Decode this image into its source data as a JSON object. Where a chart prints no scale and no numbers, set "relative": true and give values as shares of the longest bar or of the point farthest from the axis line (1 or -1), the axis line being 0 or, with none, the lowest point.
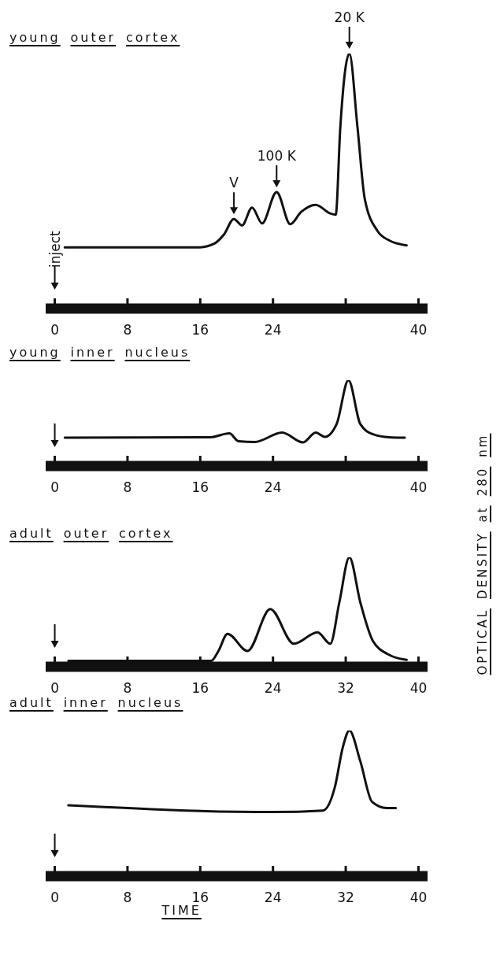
{
  "chart_data": [
    {
      "type": "line",
      "title": "young outer cortex",
      "relative": true,
      "color": "#111111",
      "xlim": [
        -1,
        41
      ],
      "xticks": [
        0,
        8,
        16,
        24,
        {
          "value": 32,
          "label": null
        },
        40
      ],
      "x": [
        1.1,
        15.8,
        17.6,
        18.6,
        19.7,
        20.6,
        21.7,
        22.8,
        24.4,
        25.9,
        27.1,
        28.7,
        30.3,
        30.9,
        31.4,
        32.4,
        33.3,
        34.1,
        35.5,
        36.8,
        38.7
      ],
      "values": [
        0.24,
        0.24,
        0.256,
        0.29,
        0.351,
        0.326,
        0.396,
        0.334,
        0.457,
        0.331,
        0.379,
        0.407,
        0.373,
        0.368,
        0.708,
        1,
        0.708,
        0.429,
        0.304,
        0.267,
        0.248
      ],
      "annotations": [
        "inject",
        {
          "text": "V",
          "x": 19.7,
          "y": 0.351
        },
        {
          "text": "100 K",
          "x": 24.4,
          "y": 0.457
        },
        {
          "text": "20 K",
          "x": 32.4,
          "y": 1
        }
      ]
    },
    {
      "type": "line",
      "title": "young inner nucleus",
      "relative": true,
      "color": "#111111",
      "xlim": [
        -1,
        41
      ],
      "xticks": [
        0,
        8,
        16,
        24,
        {
          "value": 32,
          "label": null
        },
        40
      ],
      "x": [
        1.1,
        17.1,
        19.2,
        20.2,
        22.0,
        25.0,
        27.3,
        28.7,
        29.7,
        31.0,
        32.3,
        33.6,
        35.0,
        36.8,
        38.5
      ],
      "values": [
        0.33,
        0.335,
        0.38,
        0.29,
        0.28,
        0.39,
        0.275,
        0.39,
        0.34,
        0.49,
        1,
        0.49,
        0.37,
        0.335,
        0.33
      ]
    },
    {
      "type": "line",
      "title": "adult outer cortex",
      "ylabel": "OPTICAL DENSITY at 280 nm",
      "relative": true,
      "color": "#111111",
      "xlim": [
        -1,
        41
      ],
      "xticks": [
        0,
        8,
        16,
        24,
        32,
        40
      ],
      "x": [
        1.5,
        17.2,
        18.0,
        19.0,
        21.2,
        23.7,
        26.3,
        28.9,
        30.3,
        31.3,
        32.4,
        33.6,
        35.0,
        36.8,
        38.7
      ],
      "values": [
        0.054,
        0.054,
        0.144,
        0.3,
        0.144,
        0.527,
        0.21,
        0.315,
        0.21,
        0.59,
        1,
        0.59,
        0.234,
        0.108,
        0.063
      ]
    },
    {
      "type": "line",
      "title": "adult inner nucleus",
      "xlabel": "TIME",
      "relative": true,
      "color": "#111111",
      "xlim": [
        -1,
        41
      ],
      "xticks": [
        0,
        8,
        16,
        24,
        32,
        40
      ],
      "x": [
        1.5,
        24,
        29.5,
        30.8,
        31.7,
        32.4,
        33.6,
        34.9,
        36.5,
        37.5
      ],
      "values": [
        0.486,
        0.44,
        0.45,
        0.61,
        0.89,
        1,
        0.79,
        0.51,
        0.467,
        0.467
      ]
    }
  ]
}
